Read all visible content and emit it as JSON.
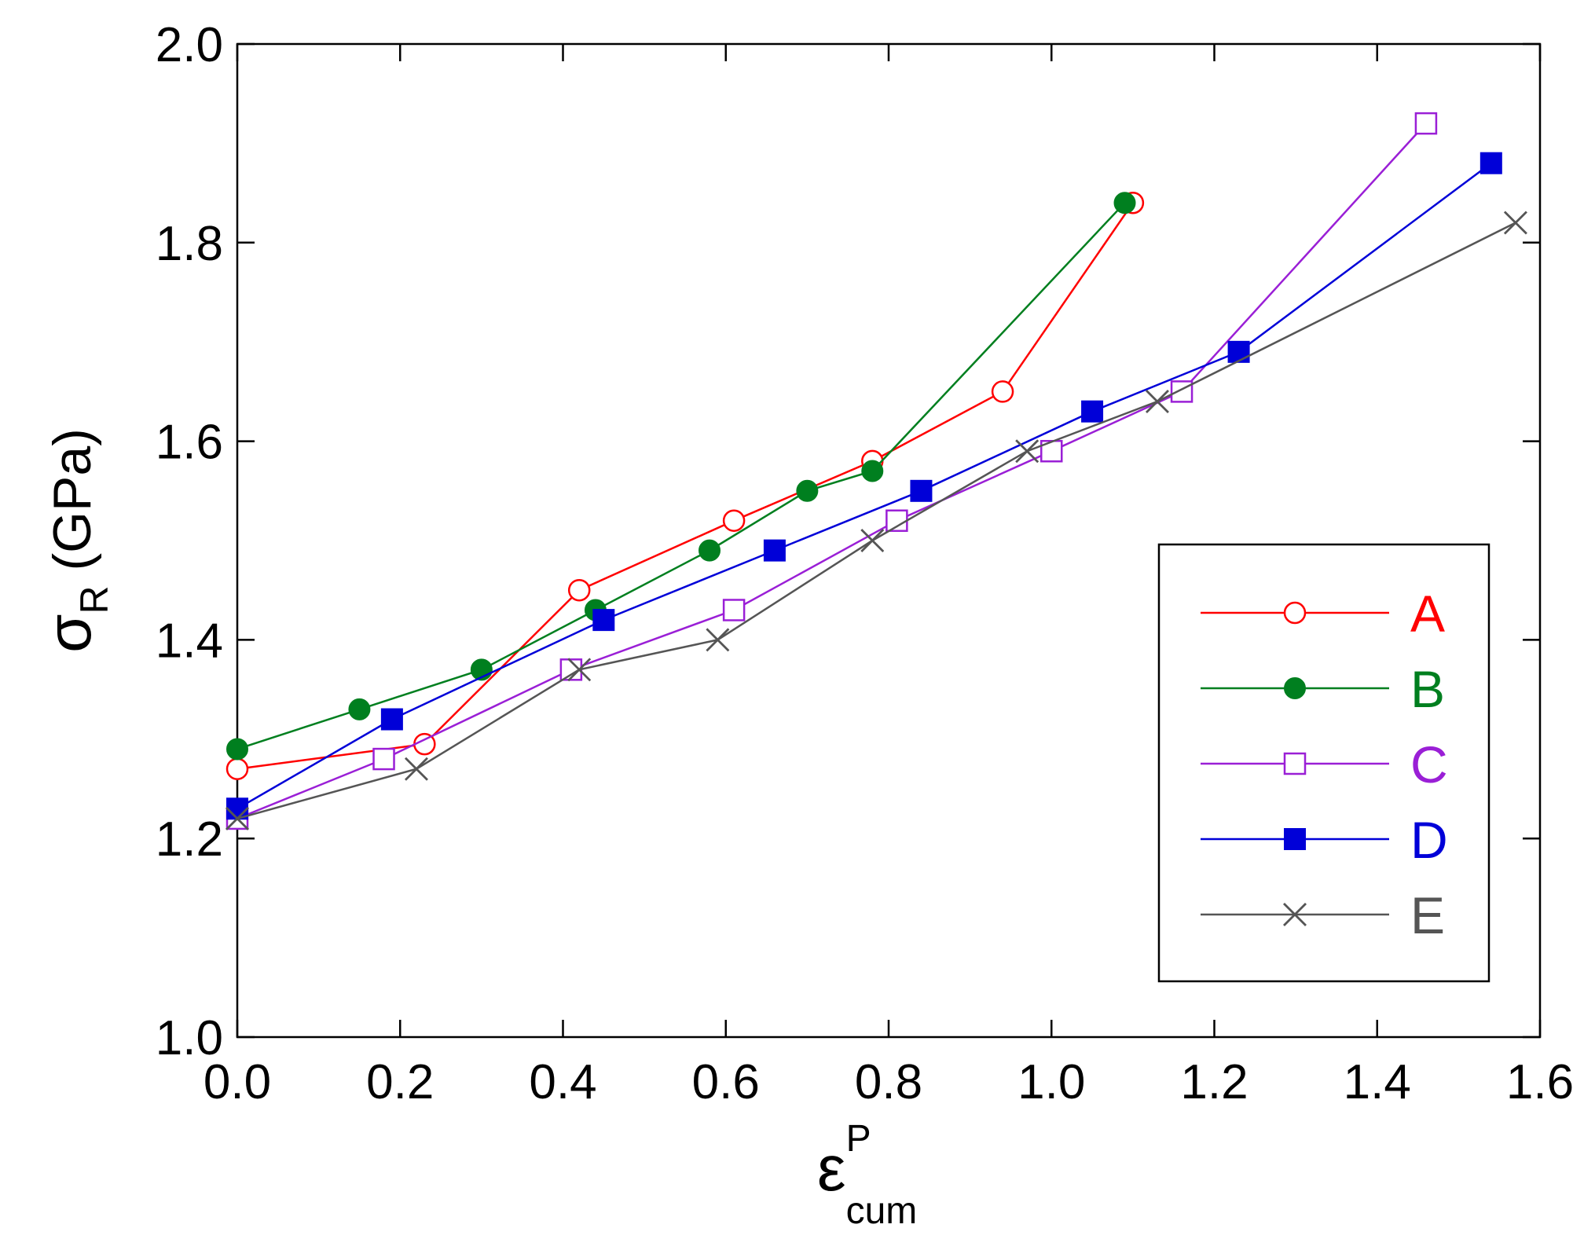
{
  "chart_data": {
    "type": "line",
    "title": "",
    "xlabel": {
      "base": "ε",
      "sup": "P",
      "sub": "cum"
    },
    "ylabel": {
      "base": "σ",
      "sub": "R",
      "unit": "(GPa)"
    },
    "xlim": [
      0.0,
      1.6
    ],
    "ylim": [
      1.0,
      2.0
    ],
    "xticks": [
      "0.0",
      "0.2",
      "0.4",
      "0.6",
      "0.8",
      "1.0",
      "1.2",
      "1.4",
      "1.6"
    ],
    "yticks": [
      "1.0",
      "1.2",
      "1.4",
      "1.6",
      "1.8",
      "2.0"
    ],
    "grid": false,
    "legend_position": "bottom-right",
    "series": [
      {
        "name": "A",
        "color": "#ff0000",
        "marker": "circle-open",
        "x": [
          0.0,
          0.23,
          0.42,
          0.61,
          0.78,
          0.94,
          1.1
        ],
        "y": [
          1.27,
          1.295,
          1.45,
          1.52,
          1.58,
          1.65,
          1.84
        ]
      },
      {
        "name": "B",
        "color": "#007f1f",
        "marker": "circle-filled",
        "x": [
          0.0,
          0.15,
          0.3,
          0.44,
          0.58,
          0.7,
          0.78,
          1.09
        ],
        "y": [
          1.29,
          1.33,
          1.37,
          1.43,
          1.49,
          1.55,
          1.57,
          1.84
        ]
      },
      {
        "name": "C",
        "color": "#9a1fd6",
        "marker": "square-open",
        "x": [
          0.0,
          0.18,
          0.41,
          0.61,
          0.81,
          1.0,
          1.16,
          1.46
        ],
        "y": [
          1.22,
          1.28,
          1.37,
          1.43,
          1.52,
          1.59,
          1.65,
          1.92
        ]
      },
      {
        "name": "D",
        "color": "#0000d8",
        "marker": "square-filled",
        "x": [
          0.0,
          0.19,
          0.45,
          0.66,
          0.84,
          1.05,
          1.23,
          1.54
        ],
        "y": [
          1.23,
          1.32,
          1.42,
          1.49,
          1.55,
          1.63,
          1.69,
          1.88
        ]
      },
      {
        "name": "E",
        "color": "#555555",
        "marker": "x",
        "x": [
          0.0,
          0.22,
          0.42,
          0.59,
          0.78,
          0.97,
          1.13,
          1.57
        ],
        "y": [
          1.22,
          1.27,
          1.37,
          1.4,
          1.5,
          1.59,
          1.64,
          1.82
        ]
      }
    ]
  }
}
